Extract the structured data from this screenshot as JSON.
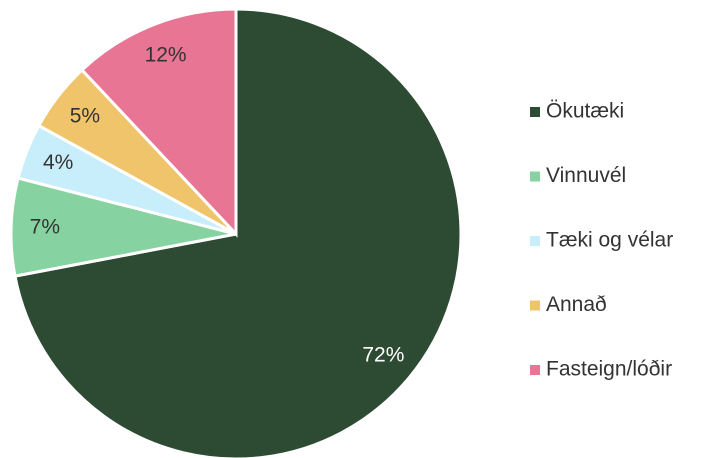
{
  "chart_data": {
    "type": "pie",
    "categories": [
      "Ökutæki",
      "Vinnuvél",
      "Tæki og vélar",
      "Annað",
      "Fasteign/lóðir"
    ],
    "values": [
      72,
      7,
      4,
      5,
      12
    ],
    "value_labels": [
      "72%",
      "7%",
      "4%",
      "5%",
      "12%"
    ],
    "colors": [
      "#2d4a33",
      "#86d3a1",
      "#c9eefb",
      "#f0c46a",
      "#e97595"
    ],
    "legend": "right"
  }
}
